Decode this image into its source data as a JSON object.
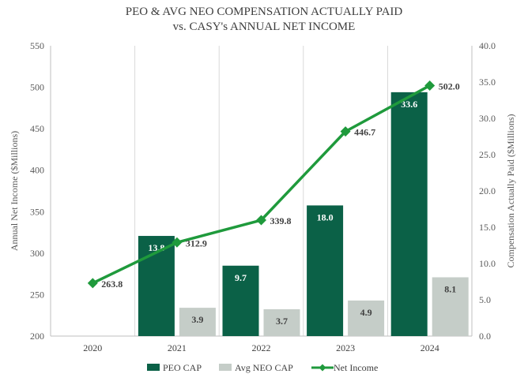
{
  "chart_data": {
    "type": "bar+line",
    "title_line1": "PEO & AVG NEO COMPENSATION ACTUALLY PAID",
    "title_line2": "vs. CASY's ANNUAL NET INCOME",
    "categories": [
      "2020",
      "2021",
      "2022",
      "2023",
      "2024"
    ],
    "y_left": {
      "label": "Annual Net Income ($Millions)",
      "min": 200,
      "max": 550,
      "step": 50,
      "ticks": [
        "200",
        "250",
        "300",
        "350",
        "400",
        "450",
        "500",
        "550"
      ]
    },
    "y_right": {
      "label": "Compensation Actually Paid ($Millions)",
      "min": 0,
      "max": 40,
      "step": 5,
      "ticks": [
        "0.0",
        "5.0",
        "10.0",
        "15.0",
        "20.0",
        "25.0",
        "30.0",
        "35.0",
        "40.0"
      ]
    },
    "series": [
      {
        "name": "PEO CAP",
        "type": "bar",
        "axis": "right",
        "color": "#0b6147",
        "values": [
          null,
          13.8,
          9.7,
          18.0,
          33.6
        ],
        "labels": [
          "",
          "13.8",
          "9.7",
          "18.0",
          "33.6"
        ]
      },
      {
        "name": "Avg NEO CAP",
        "type": "bar",
        "axis": "right",
        "color": "#c5cdc8",
        "values": [
          null,
          3.9,
          3.7,
          4.9,
          8.1
        ],
        "labels": [
          "",
          "3.9",
          "3.7",
          "4.9",
          "8.1"
        ]
      },
      {
        "name": "Net Income",
        "type": "line",
        "axis": "left",
        "color": "#1f9a3c",
        "values": [
          263.8,
          312.9,
          339.8,
          446.7,
          502.0
        ],
        "labels": [
          "263.8",
          "312.9",
          "339.8",
          "446.7",
          "502.0"
        ]
      }
    ],
    "legend": [
      "PEO CAP",
      "Avg NEO CAP",
      "Net Income"
    ],
    "legend_position": "bottom",
    "grid": "vertical"
  }
}
